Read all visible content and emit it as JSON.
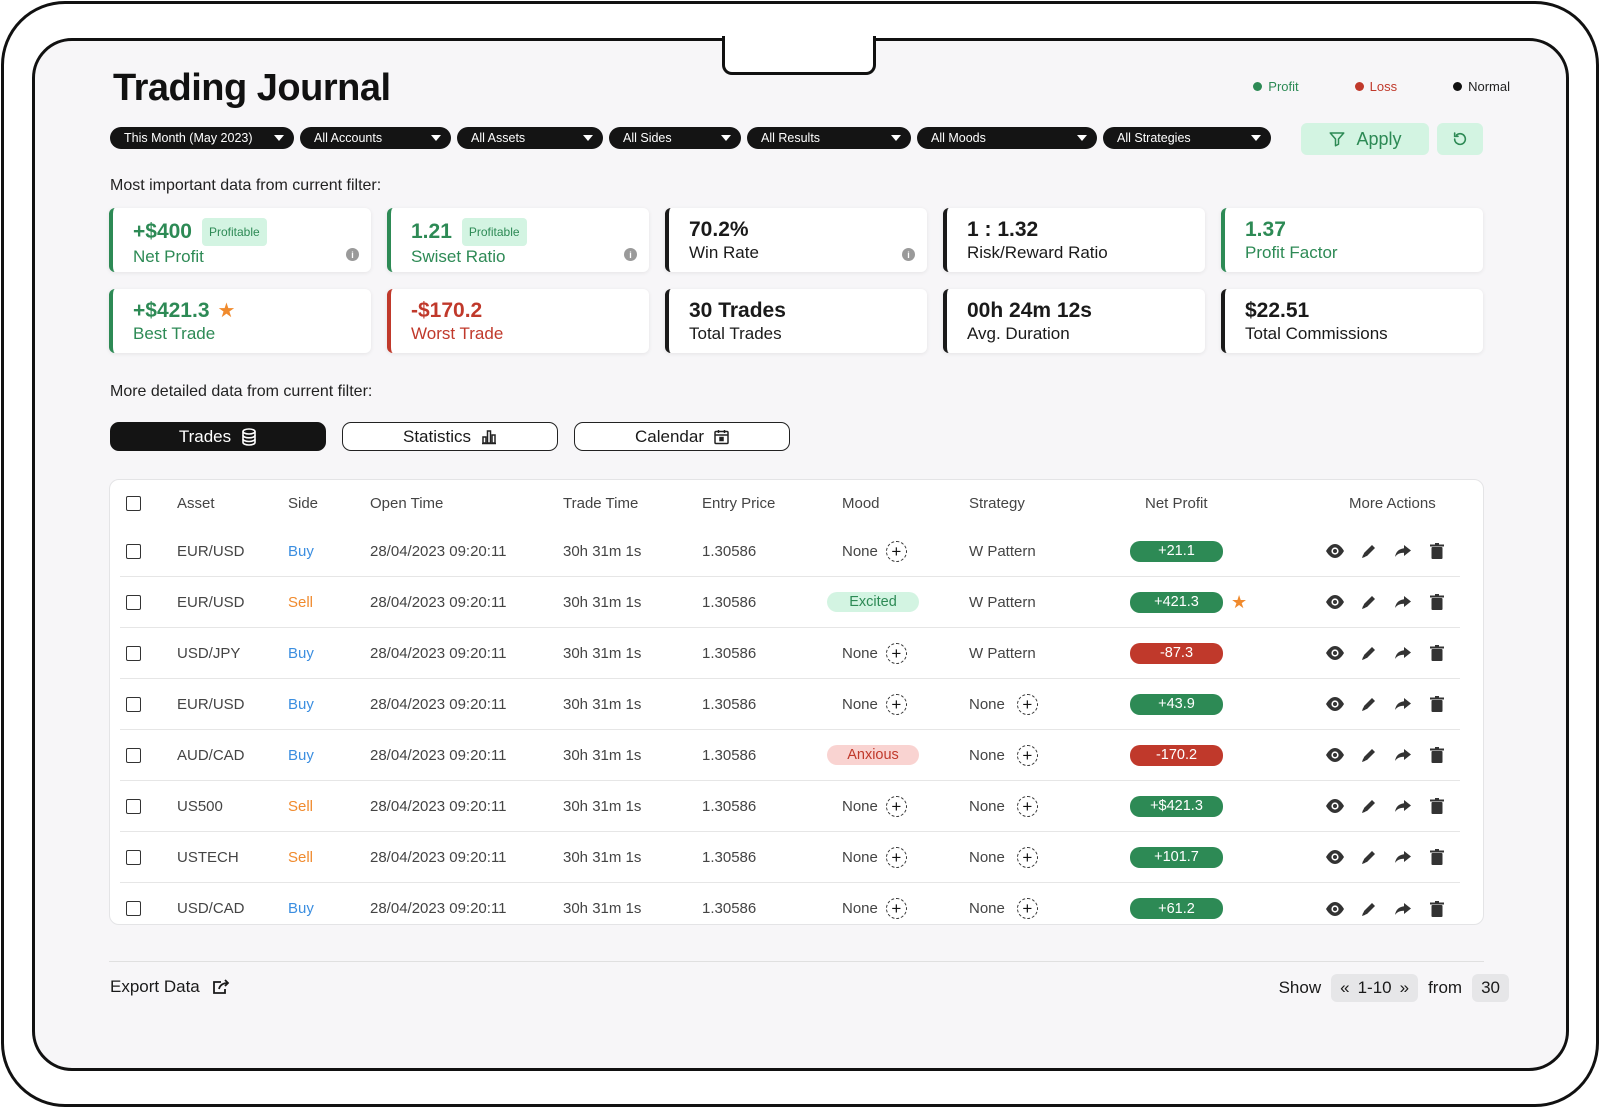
{
  "title": "Trading Journal",
  "legend": [
    {
      "label": "Profit",
      "color": "#2d8a55"
    },
    {
      "label": "Loss",
      "color": "#c0392b"
    },
    {
      "label": "Normal",
      "color": "#111111"
    }
  ],
  "filters": [
    "This Month (May 2023)",
    "All Accounts",
    "All Assets",
    "All Sides",
    "All Results",
    "All Moods",
    "All Strategies"
  ],
  "apply_label": "Apply",
  "summary_heading": "Most important data from current filter:",
  "stats": [
    {
      "value": "+$400",
      "label": "Net Profit",
      "badge": "Profitable",
      "info": true,
      "accent": "green"
    },
    {
      "value": "1.21",
      "label": "Swiset Ratio",
      "badge": "Profitable",
      "info": true,
      "accent": "green"
    },
    {
      "value": "70.2%",
      "label": "Win Rate",
      "info": true,
      "accent": "dark"
    },
    {
      "value": "1 : 1.32",
      "label": "Risk/Reward Ratio",
      "accent": "dark"
    },
    {
      "value": "1.37",
      "label": "Profit Factor",
      "accent": "green"
    },
    {
      "value": "+$421.3",
      "label": "Best Trade",
      "star": true,
      "accent": "green"
    },
    {
      "value": "-$170.2",
      "label": "Worst Trade",
      "accent": "red"
    },
    {
      "value": "30 Trades",
      "label": "Total Trades",
      "accent": "dark"
    },
    {
      "value": "00h 24m 12s",
      "label": "Avg. Duration",
      "accent": "dark"
    },
    {
      "value": "$22.51",
      "label": "Total Commissions",
      "accent": "dark"
    }
  ],
  "detail_heading": "More detailed data from current filter:",
  "tabs": [
    {
      "label": "Trades",
      "icon": "database-icon",
      "active": true
    },
    {
      "label": "Statistics",
      "icon": "bar-chart-icon",
      "active": false
    },
    {
      "label": "Calendar",
      "icon": "calendar-icon",
      "active": false
    }
  ],
  "table": {
    "columns": [
      "Asset",
      "Side",
      "Open Time",
      "Trade Time",
      "Entry Price",
      "Mood",
      "Strategy",
      "Net Profit",
      "More Actions"
    ],
    "rows": [
      {
        "asset": "EUR/USD",
        "side": "Buy",
        "open_time": "28/04/2023 09:20:11",
        "trade_time": "30h 31m 1s",
        "entry_price": "1.30586",
        "mood": "None",
        "strategy": "W Pattern",
        "net_profit": "+21.1",
        "result": "profit",
        "best": false
      },
      {
        "asset": "EUR/USD",
        "side": "Sell",
        "open_time": "28/04/2023 09:20:11",
        "trade_time": "30h 31m 1s",
        "entry_price": "1.30586",
        "mood": "Excited",
        "strategy": "W Pattern",
        "net_profit": "+421.3",
        "result": "profit",
        "best": true
      },
      {
        "asset": "USD/JPY",
        "side": "Buy",
        "open_time": "28/04/2023 09:20:11",
        "trade_time": "30h 31m 1s",
        "entry_price": "1.30586",
        "mood": "None",
        "strategy": "W Pattern",
        "net_profit": "-87.3",
        "result": "loss",
        "best": false
      },
      {
        "asset": "EUR/USD",
        "side": "Buy",
        "open_time": "28/04/2023 09:20:11",
        "trade_time": "30h 31m 1s",
        "entry_price": "1.30586",
        "mood": "None",
        "strategy": "None",
        "net_profit": "+43.9",
        "result": "profit",
        "best": false
      },
      {
        "asset": "AUD/CAD",
        "side": "Buy",
        "open_time": "28/04/2023 09:20:11",
        "trade_time": "30h 31m 1s",
        "entry_price": "1.30586",
        "mood": "Anxious",
        "strategy": "None",
        "net_profit": "-170.2",
        "result": "loss",
        "best": false
      },
      {
        "asset": "US500",
        "side": "Sell",
        "open_time": "28/04/2023 09:20:11",
        "trade_time": "30h 31m 1s",
        "entry_price": "1.30586",
        "mood": "None",
        "strategy": "None",
        "net_profit": "+$421.3",
        "result": "profit",
        "best": false
      },
      {
        "asset": "USTECH",
        "side": "Sell",
        "open_time": "28/04/2023 09:20:11",
        "trade_time": "30h 31m 1s",
        "entry_price": "1.30586",
        "mood": "None",
        "strategy": "None",
        "net_profit": "+101.7",
        "result": "profit",
        "best": false
      },
      {
        "asset": "USD/CAD",
        "side": "Buy",
        "open_time": "28/04/2023 09:20:11",
        "trade_time": "30h 31m 1s",
        "entry_price": "1.30586",
        "mood": "None",
        "strategy": "None",
        "net_profit": "+61.2",
        "result": "profit",
        "best": false
      }
    ]
  },
  "footer": {
    "export_label": "Export Data",
    "show_label": "Show",
    "page_prev": "«",
    "page_range": "1-10",
    "page_next": "»",
    "from_label": "from",
    "total": "30"
  },
  "colors": {
    "profit": "#2d8a55",
    "loss": "#c0392b",
    "buy": "#3b8ee0",
    "sell": "#f08a2d",
    "profitable_badge_bg": "#d3f4e2",
    "excited_bg": "#d3f4e2",
    "anxious_bg": "#f9d3d1"
  }
}
